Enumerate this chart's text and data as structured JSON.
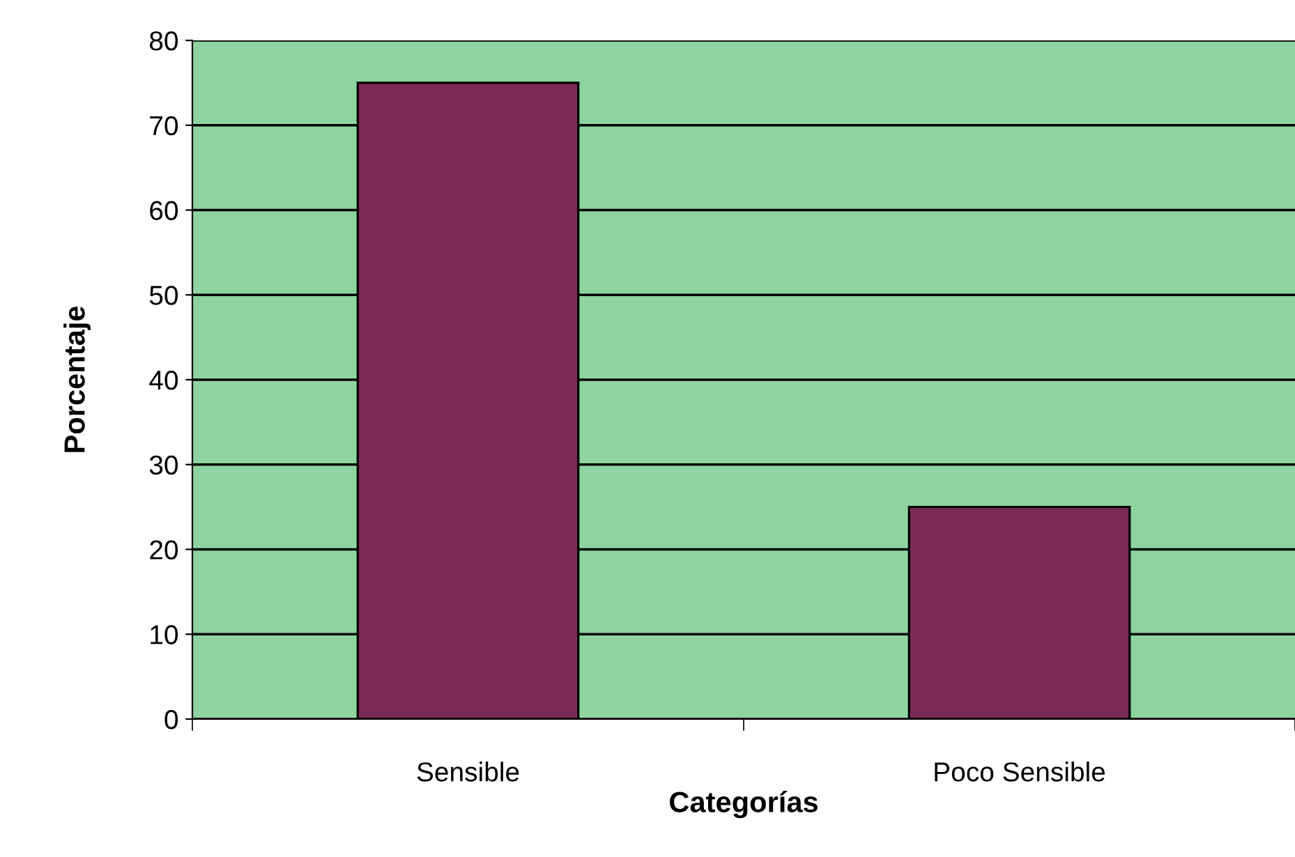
{
  "chart_data": {
    "type": "bar",
    "xlabel": "Categorías",
    "ylabel": "Porcentaje",
    "categories": [
      "Sensible",
      "Poco Sensible"
    ],
    "values": [
      75,
      25
    ],
    "color": "#7a2a55",
    "ylim": [
      0,
      80
    ],
    "yticks": [
      0,
      10,
      20,
      30,
      40,
      50,
      60,
      70,
      80
    ],
    "grid": "y",
    "legend": false
  }
}
